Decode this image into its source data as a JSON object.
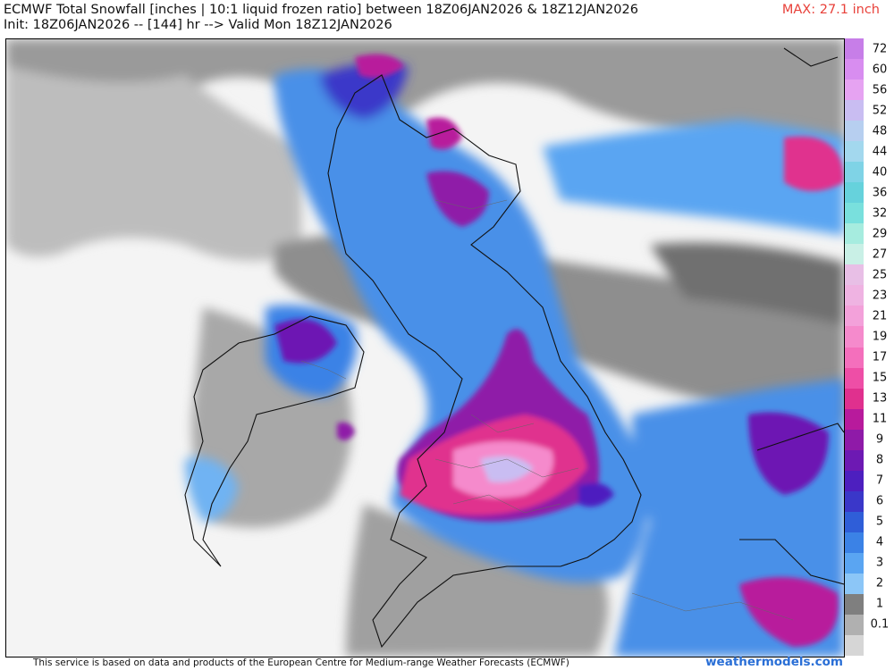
{
  "header": {
    "title_line1": "ECMWF Total Snowfall [inches | 10:1 liquid frozen ratio] between 18Z06JAN2026 & 18Z12JAN2026",
    "title_line2": "Init: 18Z06JAN2026 -- [144] hr --> Valid Mon 18Z12JAN2026",
    "max_label": "MAX: 27.1 inch"
  },
  "legend": {
    "levels": [
      {
        "label": "72",
        "color": "#c77ee8"
      },
      {
        "label": "60",
        "color": "#d88df0"
      },
      {
        "label": "56",
        "color": "#e6a3f2"
      },
      {
        "label": "52",
        "color": "#c9bdf2"
      },
      {
        "label": "48",
        "color": "#b7cff0"
      },
      {
        "label": "44",
        "color": "#a3d8ee"
      },
      {
        "label": "40",
        "color": "#7fd3e6"
      },
      {
        "label": "36",
        "color": "#66d2dc"
      },
      {
        "label": "32",
        "color": "#79e0dd"
      },
      {
        "label": "29",
        "color": "#a6ecdf"
      },
      {
        "label": "27",
        "color": "#c9f0e6"
      },
      {
        "label": "25",
        "color": "#e8bfe6"
      },
      {
        "label": "23",
        "color": "#efb3e2"
      },
      {
        "label": "21",
        "color": "#f3a1da"
      },
      {
        "label": "19",
        "color": "#f58acc"
      },
      {
        "label": "17",
        "color": "#f46fbc"
      },
      {
        "label": "15",
        "color": "#ee4ea6"
      },
      {
        "label": "13",
        "color": "#e0308e"
      },
      {
        "label": "11",
        "color": "#b81a9c"
      },
      {
        "label": "9",
        "color": "#8f1aa8"
      },
      {
        "label": "8",
        "color": "#6d19b3"
      },
      {
        "label": "7",
        "color": "#4d1fbf"
      },
      {
        "label": "6",
        "color": "#3a37c9"
      },
      {
        "label": "5",
        "color": "#2f5ed8"
      },
      {
        "label": "4",
        "color": "#3b82e6"
      },
      {
        "label": "3",
        "color": "#5aa5f2"
      },
      {
        "label": "2",
        "color": "#8cc6f7"
      },
      {
        "label": "1",
        "color": "#7f7f7f"
      },
      {
        "label": "0.1",
        "color": "#b0b0b0"
      },
      {
        "label": "",
        "color": "#d6d6d6"
      }
    ]
  },
  "footer": {
    "attribution": "This service is based on data and products of the European Centre for Medium-range Weather Forecasts (ECMWF)",
    "brand": "weathermodels.com"
  }
}
